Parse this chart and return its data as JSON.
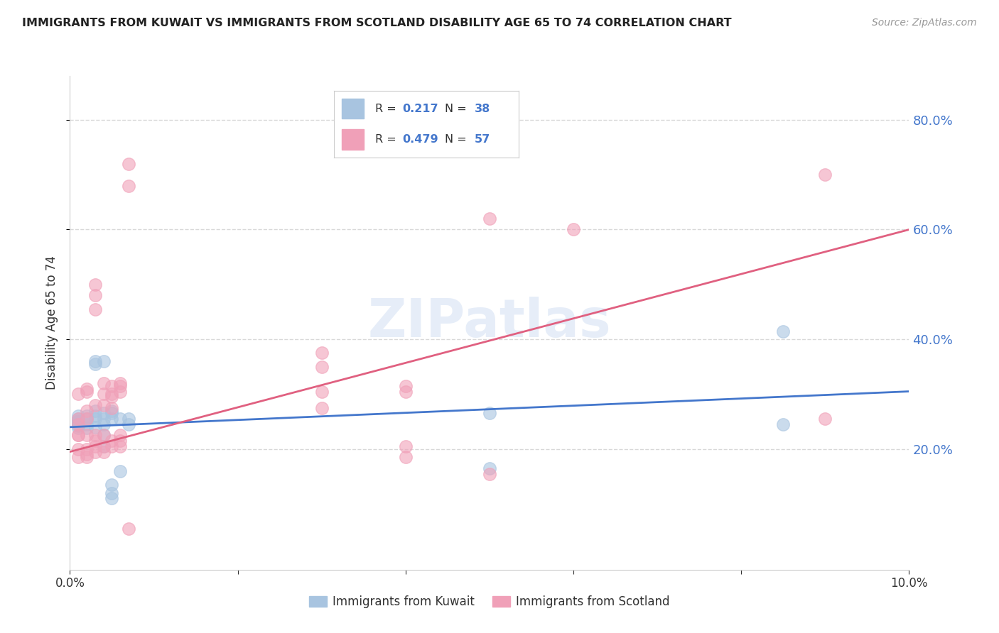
{
  "title": "IMMIGRANTS FROM KUWAIT VS IMMIGRANTS FROM SCOTLAND DISABILITY AGE 65 TO 74 CORRELATION CHART",
  "source": "Source: ZipAtlas.com",
  "ylabel": "Disability Age 65 to 74",
  "xlim": [
    0.0,
    0.1
  ],
  "ylim": [
    -0.02,
    0.88
  ],
  "yticks": [
    0.2,
    0.4,
    0.6,
    0.8
  ],
  "xticks": [
    0.0,
    0.02,
    0.04,
    0.06,
    0.08,
    0.1
  ],
  "background_color": "#ffffff",
  "grid_color": "#d8d8d8",
  "watermark": "ZIPatlas",
  "kuwait_color": "#a8c4e0",
  "scotland_color": "#f0a0b8",
  "kuwait_line_color": "#4477cc",
  "scotland_line_color": "#e06080",
  "legend_text_color": "#333333",
  "legend_value_color": "#4477cc",
  "axis_label_color": "#4477cc",
  "kuwait_scatter": [
    [
      0.001,
      0.255
    ],
    [
      0.001,
      0.26
    ],
    [
      0.001,
      0.25
    ],
    [
      0.001,
      0.245
    ],
    [
      0.001,
      0.248
    ],
    [
      0.001,
      0.242
    ],
    [
      0.001,
      0.238
    ],
    [
      0.001,
      0.252
    ],
    [
      0.002,
      0.255
    ],
    [
      0.002,
      0.26
    ],
    [
      0.002,
      0.245
    ],
    [
      0.002,
      0.238
    ],
    [
      0.003,
      0.355
    ],
    [
      0.003,
      0.36
    ],
    [
      0.003,
      0.255
    ],
    [
      0.003,
      0.26
    ],
    [
      0.003,
      0.27
    ],
    [
      0.003,
      0.24
    ],
    [
      0.004,
      0.36
    ],
    [
      0.004,
      0.255
    ],
    [
      0.004,
      0.225
    ],
    [
      0.004,
      0.245
    ],
    [
      0.004,
      0.205
    ],
    [
      0.004,
      0.265
    ],
    [
      0.005,
      0.255
    ],
    [
      0.005,
      0.27
    ],
    [
      0.005,
      0.265
    ],
    [
      0.005,
      0.135
    ],
    [
      0.005,
      0.12
    ],
    [
      0.005,
      0.11
    ],
    [
      0.006,
      0.255
    ],
    [
      0.006,
      0.16
    ],
    [
      0.007,
      0.255
    ],
    [
      0.007,
      0.245
    ],
    [
      0.085,
      0.415
    ],
    [
      0.085,
      0.245
    ],
    [
      0.05,
      0.165
    ],
    [
      0.05,
      0.265
    ]
  ],
  "scotland_scatter": [
    [
      0.001,
      0.255
    ],
    [
      0.001,
      0.225
    ],
    [
      0.001,
      0.3
    ],
    [
      0.001,
      0.245
    ],
    [
      0.001,
      0.185
    ],
    [
      0.001,
      0.2
    ],
    [
      0.001,
      0.225
    ],
    [
      0.002,
      0.31
    ],
    [
      0.002,
      0.27
    ],
    [
      0.002,
      0.255
    ],
    [
      0.002,
      0.225
    ],
    [
      0.002,
      0.2
    ],
    [
      0.002,
      0.19
    ],
    [
      0.002,
      0.185
    ],
    [
      0.002,
      0.305
    ],
    [
      0.003,
      0.225
    ],
    [
      0.003,
      0.28
    ],
    [
      0.003,
      0.215
    ],
    [
      0.003,
      0.5
    ],
    [
      0.003,
      0.455
    ],
    [
      0.003,
      0.205
    ],
    [
      0.003,
      0.195
    ],
    [
      0.003,
      0.48
    ],
    [
      0.004,
      0.3
    ],
    [
      0.004,
      0.32
    ],
    [
      0.004,
      0.28
    ],
    [
      0.004,
      0.225
    ],
    [
      0.004,
      0.205
    ],
    [
      0.004,
      0.195
    ],
    [
      0.005,
      0.3
    ],
    [
      0.005,
      0.315
    ],
    [
      0.005,
      0.295
    ],
    [
      0.005,
      0.275
    ],
    [
      0.005,
      0.215
    ],
    [
      0.005,
      0.205
    ],
    [
      0.006,
      0.305
    ],
    [
      0.006,
      0.315
    ],
    [
      0.006,
      0.32
    ],
    [
      0.006,
      0.225
    ],
    [
      0.006,
      0.215
    ],
    [
      0.006,
      0.205
    ],
    [
      0.007,
      0.72
    ],
    [
      0.007,
      0.68
    ],
    [
      0.007,
      0.055
    ],
    [
      0.03,
      0.35
    ],
    [
      0.03,
      0.375
    ],
    [
      0.03,
      0.305
    ],
    [
      0.03,
      0.275
    ],
    [
      0.04,
      0.315
    ],
    [
      0.04,
      0.305
    ],
    [
      0.04,
      0.205
    ],
    [
      0.04,
      0.185
    ],
    [
      0.05,
      0.62
    ],
    [
      0.05,
      0.155
    ],
    [
      0.06,
      0.6
    ],
    [
      0.09,
      0.7
    ],
    [
      0.09,
      0.255
    ]
  ],
  "kuwait_trendline_x": [
    0.0,
    0.1
  ],
  "kuwait_trendline_y": [
    0.24,
    0.305
  ],
  "scotland_trendline_x": [
    0.0,
    0.1
  ],
  "scotland_trendline_y": [
    0.195,
    0.6
  ]
}
